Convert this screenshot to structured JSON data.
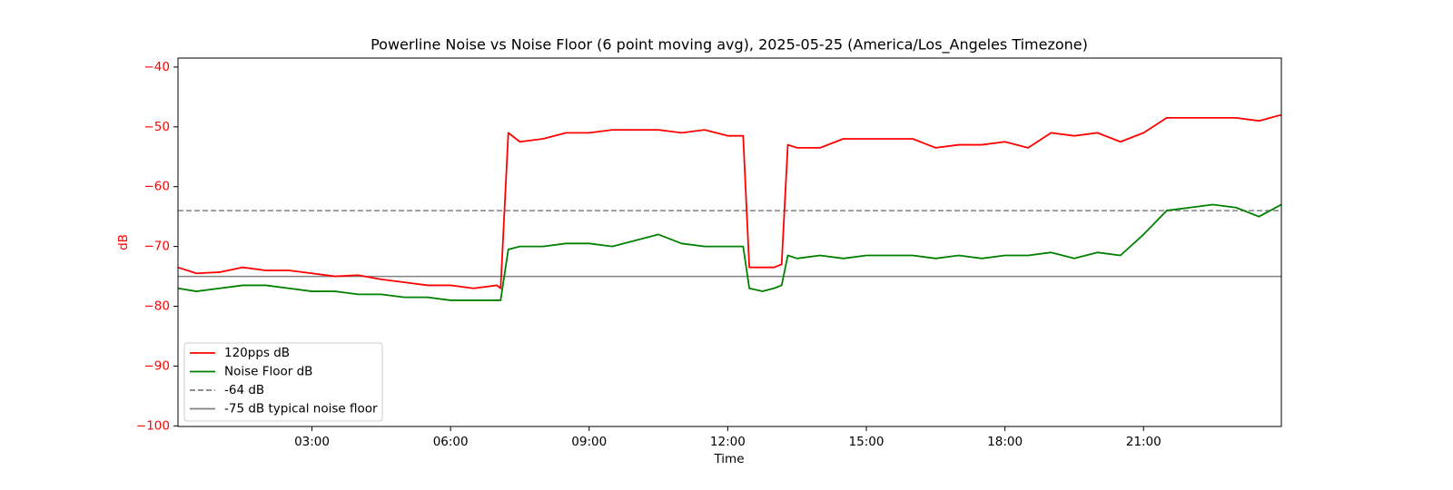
{
  "chart_data": {
    "type": "line",
    "title": "Powerline Noise vs Noise Floor (6 point moving avg), 2025-05-25 (America/Los_Angeles Timezone)",
    "xlabel": "Time",
    "ylabel": "dB",
    "ylabel_color": "#ff0000",
    "x": [
      "00:06",
      "00:30",
      "01:00",
      "01:30",
      "02:00",
      "02:30",
      "03:00",
      "03:30",
      "04:00",
      "04:30",
      "05:00",
      "05:30",
      "06:00",
      "06:30",
      "07:00",
      "07:05",
      "07:15",
      "07:30",
      "08:00",
      "08:30",
      "09:00",
      "09:30",
      "10:00",
      "10:30",
      "11:00",
      "11:30",
      "12:00",
      "12:20",
      "12:28",
      "12:45",
      "13:00",
      "13:10",
      "13:18",
      "13:30",
      "14:00",
      "14:30",
      "15:00",
      "15:30",
      "16:00",
      "16:30",
      "17:00",
      "17:30",
      "18:00",
      "18:30",
      "19:00",
      "19:30",
      "20:00",
      "20:30",
      "21:00",
      "21:30",
      "22:00",
      "22:30",
      "23:00",
      "23:30",
      "23:59"
    ],
    "series": [
      {
        "name": "120pps dB",
        "color": "#ff0000",
        "values": [
          -73.5,
          -74.5,
          -74.3,
          -73.5,
          -74,
          -74,
          -74.5,
          -75,
          -74.8,
          -75.5,
          -76,
          -76.5,
          -76.5,
          -77,
          -76.5,
          -77,
          -51,
          -52.5,
          -52,
          -51,
          -51,
          -50.5,
          -50.5,
          -50.5,
          -51,
          -50.5,
          -51.5,
          -51.5,
          -73.5,
          -73.5,
          -73.5,
          -73,
          -53,
          -53.5,
          -53.5,
          -52,
          -52,
          -52,
          -52,
          -53.5,
          -53,
          -53,
          -52.5,
          -53.5,
          -51,
          -51.5,
          -51,
          -52.5,
          -51,
          -48.5,
          -48.5,
          -48.5,
          -48.5,
          -49,
          -48
        ]
      },
      {
        "name": "Noise Floor dB",
        "color": "#008000",
        "values": [
          -77,
          -77.5,
          -77,
          -76.5,
          -76.5,
          -77,
          -77.5,
          -77.5,
          -78,
          -78,
          -78.5,
          -78.5,
          -79,
          -79,
          -79,
          -79,
          -70.5,
          -70,
          -70,
          -69.5,
          -69.5,
          -70,
          -69,
          -68,
          -69.5,
          -70,
          -70,
          -70,
          -77,
          -77.5,
          -77,
          -76.5,
          -71.5,
          -72,
          -71.5,
          -72,
          -71.5,
          -71.5,
          -71.5,
          -72,
          -71.5,
          -72,
          -71.5,
          -71.5,
          -71,
          -72,
          -71,
          -71.5,
          -68,
          -64,
          -63.5,
          -63,
          -63.5,
          -65,
          -63
        ]
      }
    ],
    "hlines": [
      {
        "name": "-64 dB",
        "value": -64,
        "color": "#808080",
        "dashed": true
      },
      {
        "name": "-75 dB typical noise floor",
        "value": -75,
        "color": "#808080",
        "dashed": false
      }
    ],
    "xlim": [
      "00:06",
      "23:59"
    ],
    "xticks": [
      "03:00",
      "06:00",
      "09:00",
      "12:00",
      "15:00",
      "18:00",
      "21:00"
    ],
    "ylim": [
      -100.1,
      -38.5
    ],
    "yticks": [
      {
        "value": -100,
        "label": "−100"
      },
      {
        "value": -90,
        "label": "−90"
      },
      {
        "value": -80,
        "label": "−80"
      },
      {
        "value": -70,
        "label": "−70"
      },
      {
        "value": -60,
        "label": "−60"
      },
      {
        "value": -50,
        "label": "−50"
      },
      {
        "value": -40,
        "label": "−40"
      }
    ],
    "legend": "lower left",
    "grid": false
  }
}
